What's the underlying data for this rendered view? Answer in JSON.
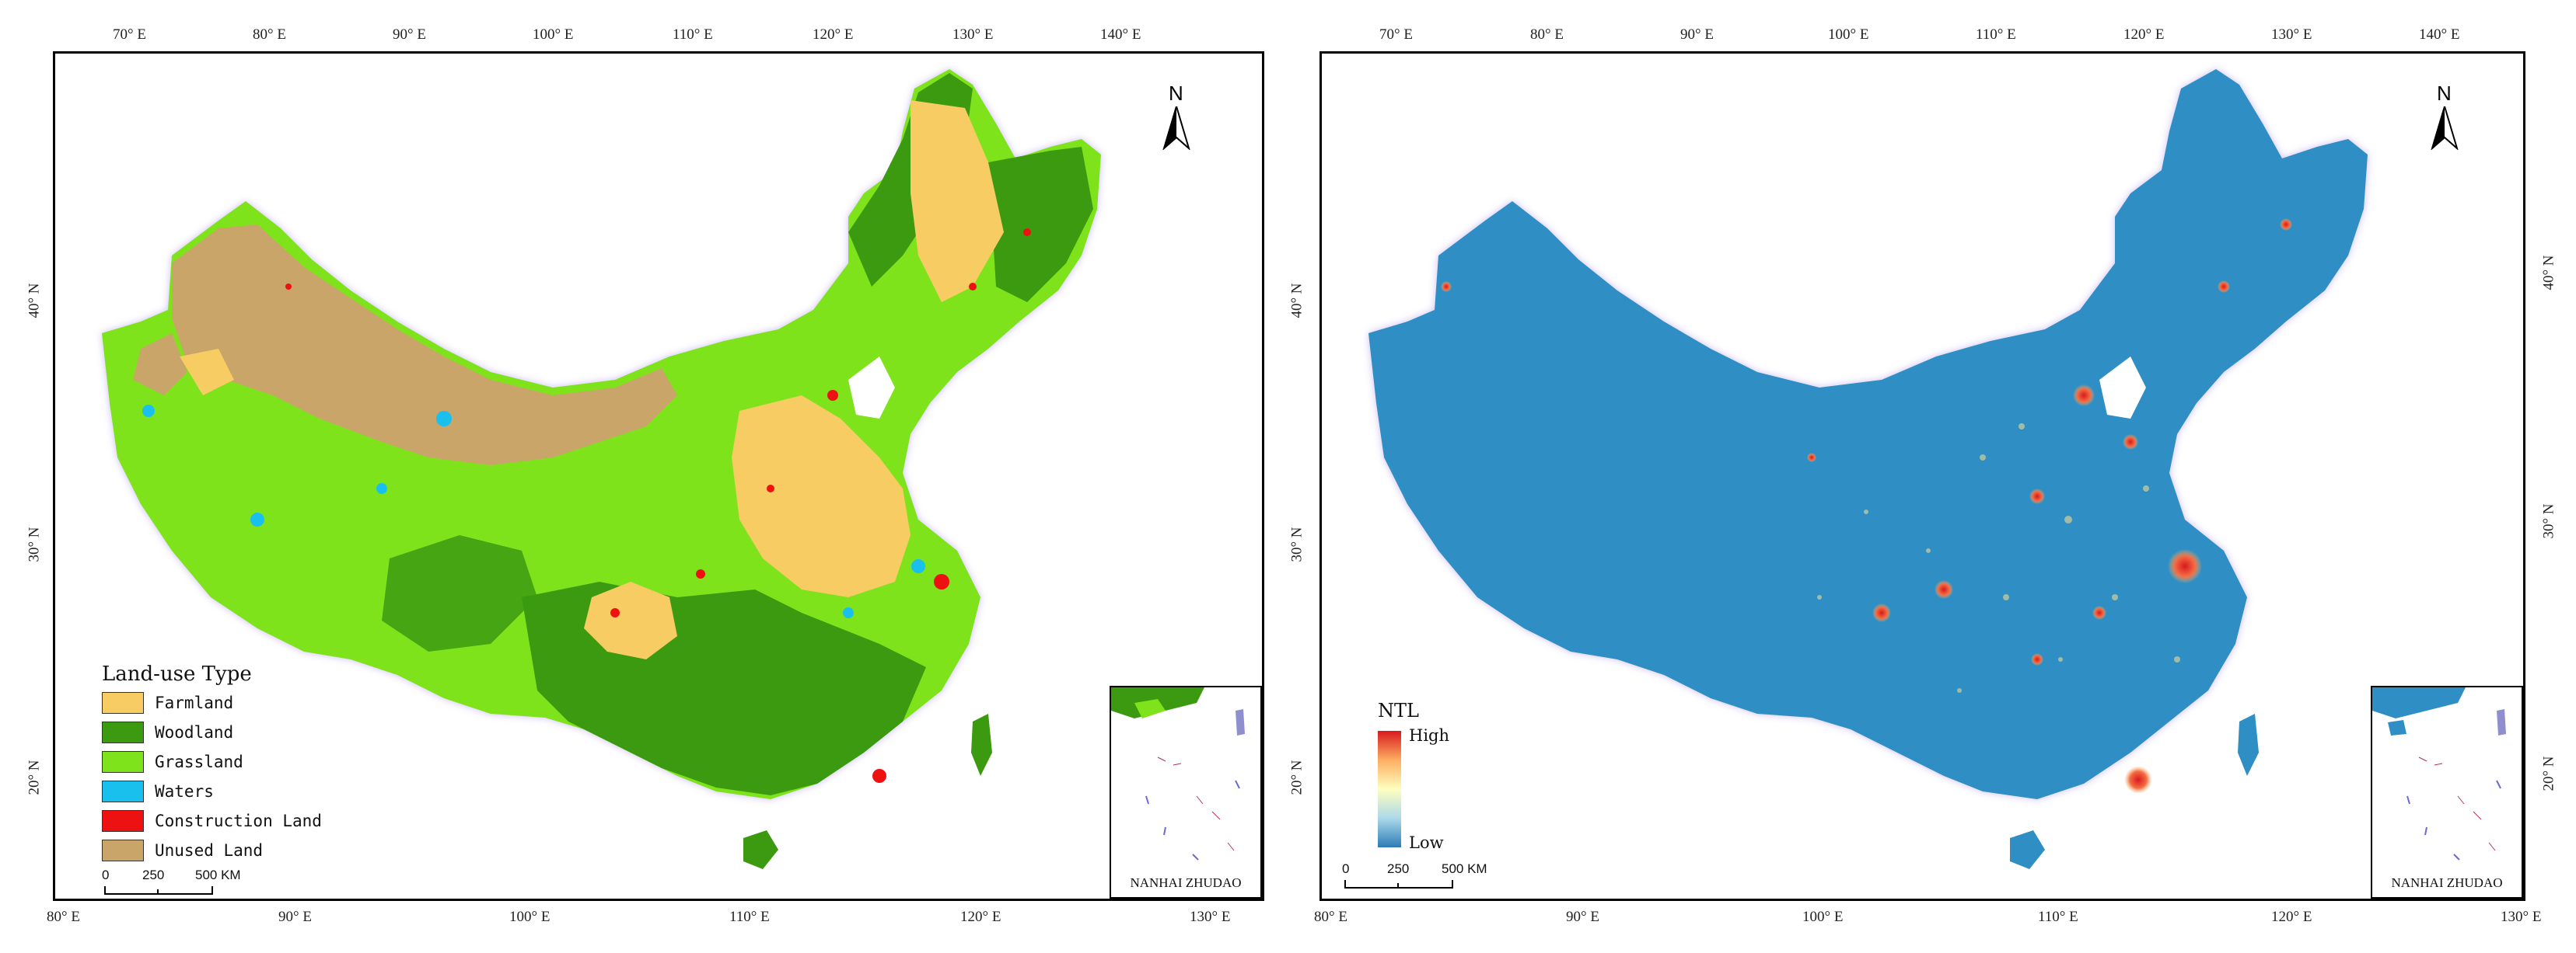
{
  "left_map": {
    "top_ticks": [
      "70° E",
      "80° E",
      "90° E",
      "100° E",
      "110° E",
      "120° E",
      "130° E",
      "140° E"
    ],
    "bottom_ticks": [
      "80° E",
      "90° E",
      "100° E",
      "110° E",
      "120° E",
      "130° E"
    ],
    "side_ticks": [
      "40° N",
      "30° N",
      "20° N"
    ],
    "north_label": "N",
    "legend": {
      "title": "Land-use Type",
      "items": [
        {
          "label": "Farmland",
          "color": "#f7cc63"
        },
        {
          "label": "Woodland",
          "color": "#3b9a10"
        },
        {
          "label": "Grassland",
          "color": "#7ee31b"
        },
        {
          "label": "Waters",
          "color": "#19c0ee"
        },
        {
          "label": "Construction Land",
          "color": "#ee1111"
        },
        {
          "label": "Unused Land",
          "color": "#c9a56a"
        }
      ]
    },
    "scale": {
      "labels": [
        "0",
        "250",
        "500 KM"
      ]
    },
    "inset_label": "NANHAI ZHUDAO"
  },
  "right_map": {
    "top_ticks": [
      "70° E",
      "80° E",
      "90° E",
      "100° E",
      "110° E",
      "120° E",
      "130° E",
      "140° E"
    ],
    "bottom_ticks": [
      "80° E",
      "90° E",
      "100° E",
      "110° E",
      "120° E",
      "130° E"
    ],
    "side_ticks": [
      "40° N",
      "30° N",
      "20° N"
    ],
    "north_label": "N",
    "ntl_legend": {
      "title": "NTL",
      "high": "High",
      "low": "Low"
    },
    "scale": {
      "labels": [
        "0",
        "250",
        "500 KM"
      ]
    },
    "inset_label": "NANHAI ZHUDAO",
    "base_color": "#2f8fc4"
  }
}
